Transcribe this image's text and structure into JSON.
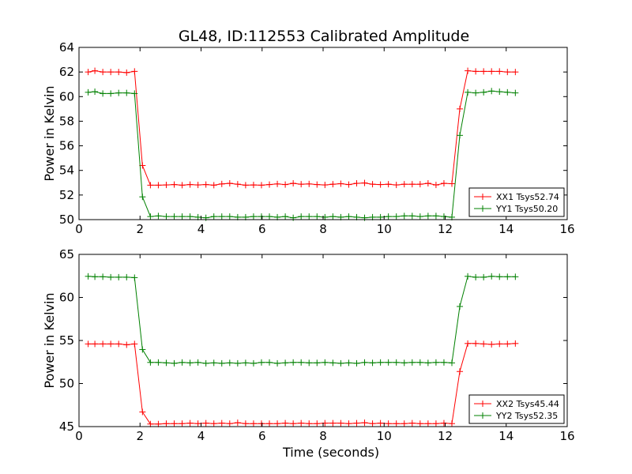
{
  "title": "GL48, ID:112553 Calibrated Amplitude",
  "colors": {
    "red": "#ff0000",
    "green": "#008000",
    "axis": "#000000"
  },
  "chart_data": [
    {
      "type": "line",
      "xlabel": "",
      "ylabel": "Power in Kelvin",
      "xlim": [
        0,
        16
      ],
      "ylim": [
        50,
        64
      ],
      "xticks": [
        "0",
        "2",
        "4",
        "6",
        "8",
        "10",
        "12",
        "14",
        "16"
      ],
      "yticks": [
        "50",
        "52",
        "54",
        "56",
        "58",
        "60",
        "62",
        "64"
      ],
      "grid": false,
      "legend_position": "lower right",
      "x": [
        0.3,
        0.52,
        0.78,
        1.04,
        1.3,
        1.56,
        1.82,
        2.08,
        2.34,
        2.6,
        2.86,
        3.12,
        3.38,
        3.64,
        3.9,
        4.16,
        4.42,
        4.68,
        4.94,
        5.2,
        5.46,
        5.72,
        5.98,
        6.24,
        6.5,
        6.76,
        7.02,
        7.28,
        7.54,
        7.8,
        8.06,
        8.32,
        8.58,
        8.84,
        9.1,
        9.36,
        9.62,
        9.88,
        10.14,
        10.4,
        10.66,
        10.92,
        11.18,
        11.44,
        11.7,
        11.96,
        12.22,
        12.48,
        12.74,
        13.0,
        13.26,
        13.52,
        13.78,
        14.04,
        14.3
      ],
      "series": [
        {
          "name": "XX1 Tsys52.74",
          "color": "#ff0000",
          "values": [
            62.0,
            62.1,
            62.0,
            62.0,
            62.0,
            61.95,
            62.05,
            54.4,
            52.8,
            52.8,
            52.82,
            52.85,
            52.8,
            52.85,
            52.82,
            52.85,
            52.8,
            52.9,
            52.95,
            52.88,
            52.8,
            52.82,
            52.8,
            52.85,
            52.9,
            52.85,
            52.95,
            52.88,
            52.9,
            52.85,
            52.82,
            52.88,
            52.92,
            52.85,
            52.95,
            52.98,
            52.88,
            52.85,
            52.88,
            52.82,
            52.88,
            52.88,
            52.88,
            52.95,
            52.82,
            52.95,
            52.92,
            59.0,
            62.1,
            62.05,
            62.05,
            62.05,
            62.05,
            62.0,
            62.0
          ]
        },
        {
          "name": "YY1 Tsys50.20",
          "color": "#008000",
          "values": [
            60.35,
            60.4,
            60.25,
            60.25,
            60.3,
            60.3,
            60.25,
            51.85,
            50.25,
            50.3,
            50.25,
            50.25,
            50.25,
            50.25,
            50.2,
            50.15,
            50.25,
            50.25,
            50.25,
            50.2,
            50.2,
            50.25,
            50.25,
            50.25,
            50.2,
            50.25,
            50.15,
            50.25,
            50.25,
            50.25,
            50.2,
            50.25,
            50.2,
            50.25,
            50.2,
            50.15,
            50.2,
            50.2,
            50.25,
            50.25,
            50.3,
            50.3,
            50.25,
            50.3,
            50.3,
            50.25,
            50.2,
            56.85,
            60.35,
            60.3,
            60.35,
            60.45,
            60.4,
            60.35,
            60.3
          ]
        }
      ]
    },
    {
      "type": "line",
      "xlabel": "Time (seconds)",
      "ylabel": "Power in Kelvin",
      "xlim": [
        0,
        16
      ],
      "ylim": [
        45,
        65
      ],
      "xticks": [
        "0",
        "2",
        "4",
        "6",
        "8",
        "10",
        "12",
        "14",
        "16"
      ],
      "yticks": [
        "45",
        "50",
        "55",
        "60",
        "65"
      ],
      "grid": false,
      "legend_position": "lower right",
      "x": [
        0.3,
        0.52,
        0.78,
        1.04,
        1.3,
        1.56,
        1.82,
        2.08,
        2.34,
        2.6,
        2.86,
        3.12,
        3.38,
        3.64,
        3.9,
        4.16,
        4.42,
        4.68,
        4.94,
        5.2,
        5.46,
        5.72,
        5.98,
        6.24,
        6.5,
        6.76,
        7.02,
        7.28,
        7.54,
        7.8,
        8.06,
        8.32,
        8.58,
        8.84,
        9.1,
        9.36,
        9.62,
        9.88,
        10.14,
        10.4,
        10.66,
        10.92,
        11.18,
        11.44,
        11.7,
        11.96,
        12.22,
        12.48,
        12.74,
        13.0,
        13.26,
        13.52,
        13.78,
        14.04,
        14.3
      ],
      "series": [
        {
          "name": "XX2 Tsys45.44",
          "color": "#ff0000",
          "values": [
            54.6,
            54.6,
            54.6,
            54.6,
            54.6,
            54.5,
            54.6,
            46.7,
            45.3,
            45.3,
            45.35,
            45.35,
            45.35,
            45.4,
            45.35,
            45.4,
            45.35,
            45.4,
            45.35,
            45.45,
            45.35,
            45.35,
            45.35,
            45.35,
            45.35,
            45.4,
            45.35,
            45.4,
            45.35,
            45.35,
            45.4,
            45.4,
            45.4,
            45.35,
            45.4,
            45.45,
            45.35,
            45.4,
            45.35,
            45.35,
            45.35,
            45.4,
            45.35,
            45.35,
            45.35,
            45.4,
            45.35,
            51.4,
            54.65,
            54.65,
            54.6,
            54.55,
            54.6,
            54.6,
            54.65
          ]
        },
        {
          "name": "YY2 Tsys52.35",
          "color": "#008000",
          "values": [
            62.45,
            62.4,
            62.4,
            62.35,
            62.35,
            62.35,
            62.3,
            53.95,
            52.45,
            52.45,
            52.4,
            52.35,
            52.45,
            52.4,
            52.45,
            52.35,
            52.4,
            52.35,
            52.4,
            52.35,
            52.4,
            52.35,
            52.45,
            52.45,
            52.35,
            52.4,
            52.45,
            52.45,
            52.4,
            52.4,
            52.45,
            52.4,
            52.35,
            52.4,
            52.35,
            52.45,
            52.4,
            52.45,
            52.45,
            52.45,
            52.4,
            52.45,
            52.45,
            52.4,
            52.45,
            52.45,
            52.4,
            58.95,
            62.45,
            62.35,
            62.35,
            62.45,
            62.4,
            62.4,
            62.4
          ]
        }
      ]
    }
  ]
}
